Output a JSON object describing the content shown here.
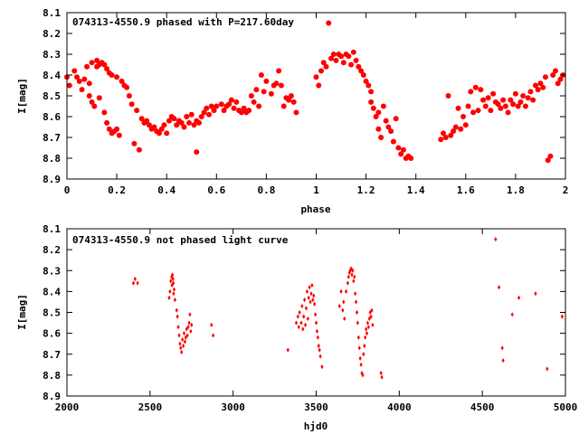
{
  "chart_data": [
    {
      "type": "scatter",
      "title": "074313-4550.9 phased with P=217.60day",
      "xlabel": "phase",
      "ylabel": "I[mag]",
      "xlim": [
        0,
        2
      ],
      "ylim": [
        8.1,
        8.9
      ],
      "y_inverted": true,
      "xticks": [
        0,
        0.2,
        0.4,
        0.6,
        0.8,
        1,
        1.2,
        1.4,
        1.6,
        1.8,
        2
      ],
      "xtick_labels": [
        "0",
        "0.2",
        "0.4",
        "0.6",
        "0.8",
        "1",
        "1.2",
        "1.4",
        "1.6",
        "1.8",
        "2"
      ],
      "yticks": [
        8.1,
        8.2,
        8.3,
        8.4,
        8.5,
        8.6,
        8.7,
        8.8,
        8.9
      ],
      "ytick_labels": [
        "8.1",
        "8.2",
        "8.3",
        "8.4",
        "8.5",
        "8.6",
        "8.7",
        "8.8",
        "8.9"
      ],
      "marker_color": "#ff0000",
      "marker": "filled-circle",
      "points": [
        [
          0.0,
          8.41
        ],
        [
          0.01,
          8.45
        ],
        [
          0.03,
          8.38
        ],
        [
          0.04,
          8.41
        ],
        [
          0.05,
          8.43
        ],
        [
          0.06,
          8.47
        ],
        [
          0.07,
          8.42
        ],
        [
          0.08,
          8.36
        ],
        [
          0.09,
          8.44
        ],
        [
          0.09,
          8.5
        ],
        [
          0.1,
          8.34
        ],
        [
          0.1,
          8.53
        ],
        [
          0.11,
          8.55
        ],
        [
          0.12,
          8.33
        ],
        [
          0.12,
          8.36
        ],
        [
          0.13,
          8.35
        ],
        [
          0.13,
          8.51
        ],
        [
          0.14,
          8.34
        ],
        [
          0.15,
          8.58
        ],
        [
          0.15,
          8.35
        ],
        [
          0.16,
          8.37
        ],
        [
          0.16,
          8.63
        ],
        [
          0.17,
          8.66
        ],
        [
          0.17,
          8.39
        ],
        [
          0.18,
          8.68
        ],
        [
          0.18,
          8.4
        ],
        [
          0.19,
          8.67
        ],
        [
          0.2,
          8.41
        ],
        [
          0.2,
          8.66
        ],
        [
          0.21,
          8.69
        ],
        [
          0.22,
          8.43
        ],
        [
          0.23,
          8.45
        ],
        [
          0.24,
          8.46
        ],
        [
          0.25,
          8.5
        ],
        [
          0.26,
          8.54
        ],
        [
          0.27,
          8.73
        ],
        [
          0.28,
          8.57
        ],
        [
          0.29,
          8.76
        ],
        [
          0.3,
          8.61
        ],
        [
          0.31,
          8.63
        ],
        [
          0.32,
          8.62
        ],
        [
          0.33,
          8.64
        ],
        [
          0.34,
          8.66
        ],
        [
          0.35,
          8.65
        ],
        [
          0.36,
          8.67
        ],
        [
          0.37,
          8.68
        ],
        [
          0.38,
          8.66
        ],
        [
          0.39,
          8.64
        ],
        [
          0.4,
          8.68
        ],
        [
          0.41,
          8.62
        ],
        [
          0.42,
          8.6
        ],
        [
          0.43,
          8.61
        ],
        [
          0.44,
          8.64
        ],
        [
          0.45,
          8.62
        ],
        [
          0.46,
          8.63
        ],
        [
          0.47,
          8.65
        ],
        [
          0.48,
          8.6
        ],
        [
          0.49,
          8.63
        ],
        [
          0.5,
          8.59
        ],
        [
          0.51,
          8.64
        ],
        [
          0.52,
          8.62
        ],
        [
          0.52,
          8.77
        ],
        [
          0.53,
          8.63
        ],
        [
          0.54,
          8.6
        ],
        [
          0.55,
          8.58
        ],
        [
          0.56,
          8.56
        ],
        [
          0.57,
          8.59
        ],
        [
          0.58,
          8.55
        ],
        [
          0.59,
          8.57
        ],
        [
          0.6,
          8.55
        ],
        [
          0.62,
          8.54
        ],
        [
          0.63,
          8.57
        ],
        [
          0.64,
          8.55
        ],
        [
          0.65,
          8.54
        ],
        [
          0.66,
          8.52
        ],
        [
          0.67,
          8.56
        ],
        [
          0.68,
          8.53
        ],
        [
          0.69,
          8.57
        ],
        [
          0.7,
          8.58
        ],
        [
          0.71,
          8.56
        ],
        [
          0.72,
          8.58
        ],
        [
          0.73,
          8.57
        ],
        [
          0.74,
          8.5
        ],
        [
          0.75,
          8.53
        ],
        [
          0.76,
          8.47
        ],
        [
          0.77,
          8.55
        ],
        [
          0.78,
          8.4
        ],
        [
          0.79,
          8.48
        ],
        [
          0.8,
          8.43
        ],
        [
          0.82,
          8.49
        ],
        [
          0.83,
          8.45
        ],
        [
          0.84,
          8.44
        ],
        [
          0.85,
          8.38
        ],
        [
          0.86,
          8.45
        ],
        [
          0.87,
          8.55
        ],
        [
          0.88,
          8.51
        ],
        [
          0.89,
          8.52
        ],
        [
          0.9,
          8.5
        ],
        [
          0.91,
          8.53
        ],
        [
          0.92,
          8.58
        ],
        [
          1.0,
          8.41
        ],
        [
          1.01,
          8.45
        ],
        [
          1.02,
          8.38
        ],
        [
          1.03,
          8.34
        ],
        [
          1.04,
          8.36
        ],
        [
          1.05,
          8.15
        ],
        [
          1.06,
          8.32
        ],
        [
          1.07,
          8.3
        ],
        [
          1.08,
          8.33
        ],
        [
          1.09,
          8.3
        ],
        [
          1.1,
          8.31
        ],
        [
          1.11,
          8.34
        ],
        [
          1.12,
          8.3
        ],
        [
          1.13,
          8.31
        ],
        [
          1.14,
          8.35
        ],
        [
          1.15,
          8.29
        ],
        [
          1.16,
          8.33
        ],
        [
          1.17,
          8.36
        ],
        [
          1.18,
          8.38
        ],
        [
          1.19,
          8.4
        ],
        [
          1.2,
          8.43
        ],
        [
          1.21,
          8.45
        ],
        [
          1.22,
          8.48
        ],
        [
          1.22,
          8.53
        ],
        [
          1.23,
          8.56
        ],
        [
          1.24,
          8.6
        ],
        [
          1.25,
          8.58
        ],
        [
          1.25,
          8.66
        ],
        [
          1.26,
          8.7
        ],
        [
          1.27,
          8.55
        ],
        [
          1.28,
          8.62
        ],
        [
          1.29,
          8.65
        ],
        [
          1.3,
          8.67
        ],
        [
          1.31,
          8.72
        ],
        [
          1.32,
          8.61
        ],
        [
          1.33,
          8.75
        ],
        [
          1.34,
          8.78
        ],
        [
          1.35,
          8.76
        ],
        [
          1.36,
          8.8
        ],
        [
          1.37,
          8.79
        ],
        [
          1.38,
          8.8
        ],
        [
          1.5,
          8.71
        ],
        [
          1.51,
          8.68
        ],
        [
          1.52,
          8.7
        ],
        [
          1.53,
          8.5
        ],
        [
          1.54,
          8.69
        ],
        [
          1.55,
          8.67
        ],
        [
          1.56,
          8.65
        ],
        [
          1.57,
          8.56
        ],
        [
          1.58,
          8.66
        ],
        [
          1.59,
          8.6
        ],
        [
          1.6,
          8.64
        ],
        [
          1.61,
          8.55
        ],
        [
          1.62,
          8.48
        ],
        [
          1.63,
          8.58
        ],
        [
          1.64,
          8.46
        ],
        [
          1.65,
          8.57
        ],
        [
          1.66,
          8.47
        ],
        [
          1.67,
          8.52
        ],
        [
          1.68,
          8.55
        ],
        [
          1.69,
          8.51
        ],
        [
          1.7,
          8.57
        ],
        [
          1.71,
          8.49
        ],
        [
          1.72,
          8.53
        ],
        [
          1.73,
          8.54
        ],
        [
          1.74,
          8.56
        ],
        [
          1.75,
          8.52
        ],
        [
          1.76,
          8.55
        ],
        [
          1.77,
          8.58
        ],
        [
          1.78,
          8.52
        ],
        [
          1.79,
          8.54
        ],
        [
          1.8,
          8.49
        ],
        [
          1.81,
          8.55
        ],
        [
          1.82,
          8.53
        ],
        [
          1.83,
          8.5
        ],
        [
          1.84,
          8.55
        ],
        [
          1.85,
          8.51
        ],
        [
          1.86,
          8.48
        ],
        [
          1.87,
          8.52
        ],
        [
          1.88,
          8.45
        ],
        [
          1.89,
          8.47
        ],
        [
          1.9,
          8.44
        ],
        [
          1.91,
          8.46
        ],
        [
          1.92,
          8.41
        ],
        [
          1.93,
          8.81
        ],
        [
          1.94,
          8.79
        ],
        [
          1.95,
          8.4
        ],
        [
          1.96,
          8.38
        ],
        [
          1.97,
          8.44
        ],
        [
          1.98,
          8.42
        ],
        [
          1.99,
          8.4
        ]
      ]
    },
    {
      "type": "scatter",
      "title": "074313-4550.9 not phased light curve",
      "xlabel": "hjd0",
      "ylabel": "I[mag]",
      "xlim": [
        2000,
        5000
      ],
      "ylim": [
        8.1,
        8.9
      ],
      "y_inverted": true,
      "xticks": [
        2000,
        2500,
        3000,
        3500,
        4000,
        4500,
        5000
      ],
      "xtick_labels": [
        "2000",
        "2500",
        "3000",
        "3500",
        "4000",
        "4500",
        "5000"
      ],
      "yticks": [
        8.1,
        8.2,
        8.3,
        8.4,
        8.5,
        8.6,
        8.7,
        8.8,
        8.9
      ],
      "ytick_labels": [
        "8.1",
        "8.2",
        "8.3",
        "8.4",
        "8.5",
        "8.6",
        "8.7",
        "8.8",
        "8.9"
      ],
      "marker_color": "#ff0000",
      "marker": "small-diamond",
      "points": [
        [
          2400,
          8.36
        ],
        [
          2410,
          8.34
        ],
        [
          2425,
          8.36
        ],
        [
          2615,
          8.43
        ],
        [
          2620,
          8.4
        ],
        [
          2625,
          8.35
        ],
        [
          2630,
          8.33
        ],
        [
          2632,
          8.37
        ],
        [
          2635,
          8.32
        ],
        [
          2638,
          8.34
        ],
        [
          2640,
          8.36
        ],
        [
          2642,
          8.41
        ],
        [
          2645,
          8.39
        ],
        [
          2650,
          8.44
        ],
        [
          2660,
          8.49
        ],
        [
          2665,
          8.52
        ],
        [
          2670,
          8.57
        ],
        [
          2675,
          8.61
        ],
        [
          2680,
          8.65
        ],
        [
          2685,
          8.67
        ],
        [
          2690,
          8.69
        ],
        [
          2695,
          8.63
        ],
        [
          2700,
          8.66
        ],
        [
          2705,
          8.6
        ],
        [
          2710,
          8.64
        ],
        [
          2715,
          8.62
        ],
        [
          2720,
          8.58
        ],
        [
          2725,
          8.61
        ],
        [
          2730,
          8.57
        ],
        [
          2735,
          8.55
        ],
        [
          2740,
          8.51
        ],
        [
          2745,
          8.59
        ],
        [
          2750,
          8.56
        ],
        [
          2870,
          8.56
        ],
        [
          2880,
          8.61
        ],
        [
          3330,
          8.68
        ],
        [
          3380,
          8.55
        ],
        [
          3390,
          8.52
        ],
        [
          3395,
          8.57
        ],
        [
          3400,
          8.5
        ],
        [
          3410,
          8.55
        ],
        [
          3415,
          8.47
        ],
        [
          3420,
          8.58
        ],
        [
          3425,
          8.52
        ],
        [
          3430,
          8.44
        ],
        [
          3435,
          8.56
        ],
        [
          3440,
          8.48
        ],
        [
          3445,
          8.4
        ],
        [
          3450,
          8.53
        ],
        [
          3455,
          8.43
        ],
        [
          3460,
          8.38
        ],
        [
          3465,
          8.45
        ],
        [
          3470,
          8.41
        ],
        [
          3475,
          8.37
        ],
        [
          3480,
          8.44
        ],
        [
          3485,
          8.42
        ],
        [
          3490,
          8.46
        ],
        [
          3495,
          8.51
        ],
        [
          3500,
          8.55
        ],
        [
          3505,
          8.59
        ],
        [
          3510,
          8.62
        ],
        [
          3515,
          8.66
        ],
        [
          3520,
          8.68
        ],
        [
          3525,
          8.71
        ],
        [
          3535,
          8.76
        ],
        [
          3640,
          8.47
        ],
        [
          3650,
          8.4
        ],
        [
          3660,
          8.49
        ],
        [
          3665,
          8.45
        ],
        [
          3670,
          8.53
        ],
        [
          3680,
          8.4
        ],
        [
          3690,
          8.36
        ],
        [
          3695,
          8.33
        ],
        [
          3700,
          8.31
        ],
        [
          3705,
          8.3
        ],
        [
          3710,
          8.29
        ],
        [
          3715,
          8.32
        ],
        [
          3720,
          8.3
        ],
        [
          3725,
          8.35
        ],
        [
          3730,
          8.33
        ],
        [
          3735,
          8.41
        ],
        [
          3740,
          8.45
        ],
        [
          3745,
          8.5
        ],
        [
          3750,
          8.55
        ],
        [
          3755,
          8.62
        ],
        [
          3760,
          8.67
        ],
        [
          3765,
          8.72
        ],
        [
          3770,
          8.75
        ],
        [
          3775,
          8.79
        ],
        [
          3780,
          8.8
        ],
        [
          3785,
          8.7
        ],
        [
          3790,
          8.66
        ],
        [
          3795,
          8.62
        ],
        [
          3800,
          8.58
        ],
        [
          3805,
          8.6
        ],
        [
          3810,
          8.55
        ],
        [
          3815,
          8.57
        ],
        [
          3820,
          8.53
        ],
        [
          3825,
          8.5
        ],
        [
          3830,
          8.52
        ],
        [
          3835,
          8.49
        ],
        [
          3840,
          8.56
        ],
        [
          3890,
          8.79
        ],
        [
          3895,
          8.81
        ],
        [
          4580,
          8.15
        ],
        [
          4600,
          8.38
        ],
        [
          4620,
          8.67
        ],
        [
          4625,
          8.73
        ],
        [
          4680,
          8.51
        ],
        [
          4720,
          8.43
        ],
        [
          4820,
          8.41
        ],
        [
          4890,
          8.77
        ],
        [
          4980,
          8.52
        ]
      ]
    }
  ]
}
